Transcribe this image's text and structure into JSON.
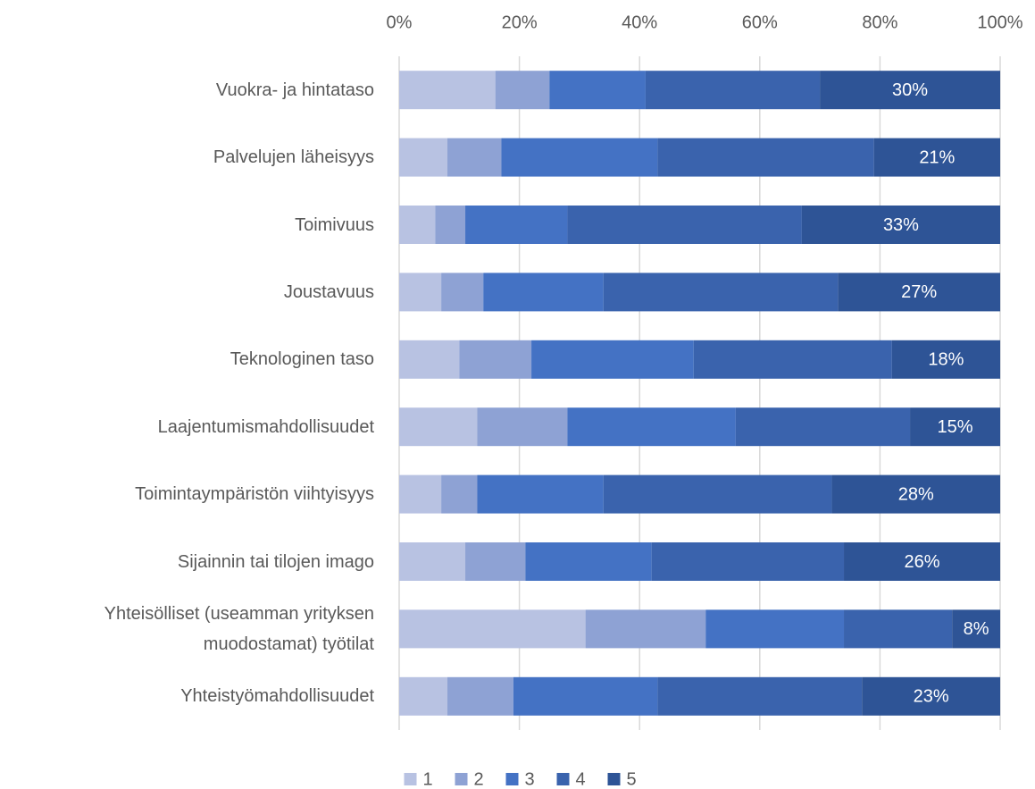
{
  "chart_data": {
    "type": "stacked_barh",
    "categories": [
      "Vuokra- ja hintataso",
      "Palvelujen läheisyys",
      "Toimivuus",
      "Joustavuus",
      "Teknologinen taso",
      "Laajentumismahdollisuudet",
      "Toimintaympäristön viihtyisyys",
      "Sijainnin tai tilojen imago",
      "Yhteisölliset (useamman yrityksen\nmuodostamat) työtilat",
      "Yhteistyömahdollisuudet"
    ],
    "series": [
      {
        "name": "1",
        "color": "#b8c2e2",
        "values": [
          16,
          8,
          6,
          7,
          10,
          13,
          7,
          11,
          31,
          8
        ]
      },
      {
        "name": "2",
        "color": "#8ea2d4",
        "values": [
          9,
          9,
          5,
          7,
          12,
          15,
          6,
          10,
          20,
          11
        ]
      },
      {
        "name": "3",
        "color": "#4472c4",
        "values": [
          16,
          26,
          17,
          20,
          27,
          28,
          21,
          21,
          23,
          24
        ]
      },
      {
        "name": "4",
        "color": "#3a63ad",
        "values": [
          29,
          36,
          39,
          39,
          33,
          29,
          38,
          32,
          18,
          34
        ]
      },
      {
        "name": "5",
        "color": "#2e5496",
        "values": [
          30,
          21,
          33,
          27,
          18,
          15,
          28,
          26,
          8,
          23
        ],
        "value_labels": [
          "30%",
          "21%",
          "33%",
          "27%",
          "18%",
          "15%",
          "28%",
          "26%",
          "8%",
          "23%"
        ]
      }
    ],
    "xlim": [
      0,
      100
    ],
    "xticks": [
      {
        "value": 0,
        "label": "0%"
      },
      {
        "value": 20,
        "label": "20%"
      },
      {
        "value": 40,
        "label": "40%"
      },
      {
        "value": 60,
        "label": "60%"
      },
      {
        "value": 80,
        "label": "80%"
      },
      {
        "value": 100,
        "label": "100%"
      }
    ],
    "grid": true,
    "legend": "bottom"
  }
}
